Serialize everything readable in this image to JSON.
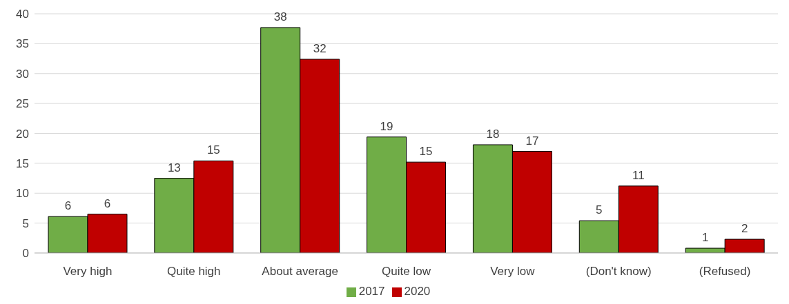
{
  "chart_data": {
    "type": "bar",
    "categories": [
      "Very high",
      "Quite high",
      "About average",
      "Quite low",
      "Very low",
      "(Don't know)",
      "(Refused)"
    ],
    "series": [
      {
        "name": "2017",
        "color": "#70ad47",
        "values": [
          6.1,
          12.5,
          37.7,
          19.4,
          18.1,
          5.4,
          0.8
        ],
        "value_labels": [
          "6",
          "13",
          "38",
          "19",
          "18",
          "5",
          "1"
        ]
      },
      {
        "name": "2020",
        "color": "#c00000",
        "values": [
          6.5,
          15.4,
          32.4,
          15.2,
          17.0,
          11.2,
          2.3
        ],
        "value_labels": [
          "6",
          "15",
          "32",
          "15",
          "17",
          "11",
          "2"
        ]
      }
    ],
    "ylim": [
      0,
      40
    ],
    "yticks": [
      0,
      5,
      10,
      15,
      20,
      25,
      30,
      35,
      40
    ],
    "grid": "y",
    "legend": "bottom"
  }
}
